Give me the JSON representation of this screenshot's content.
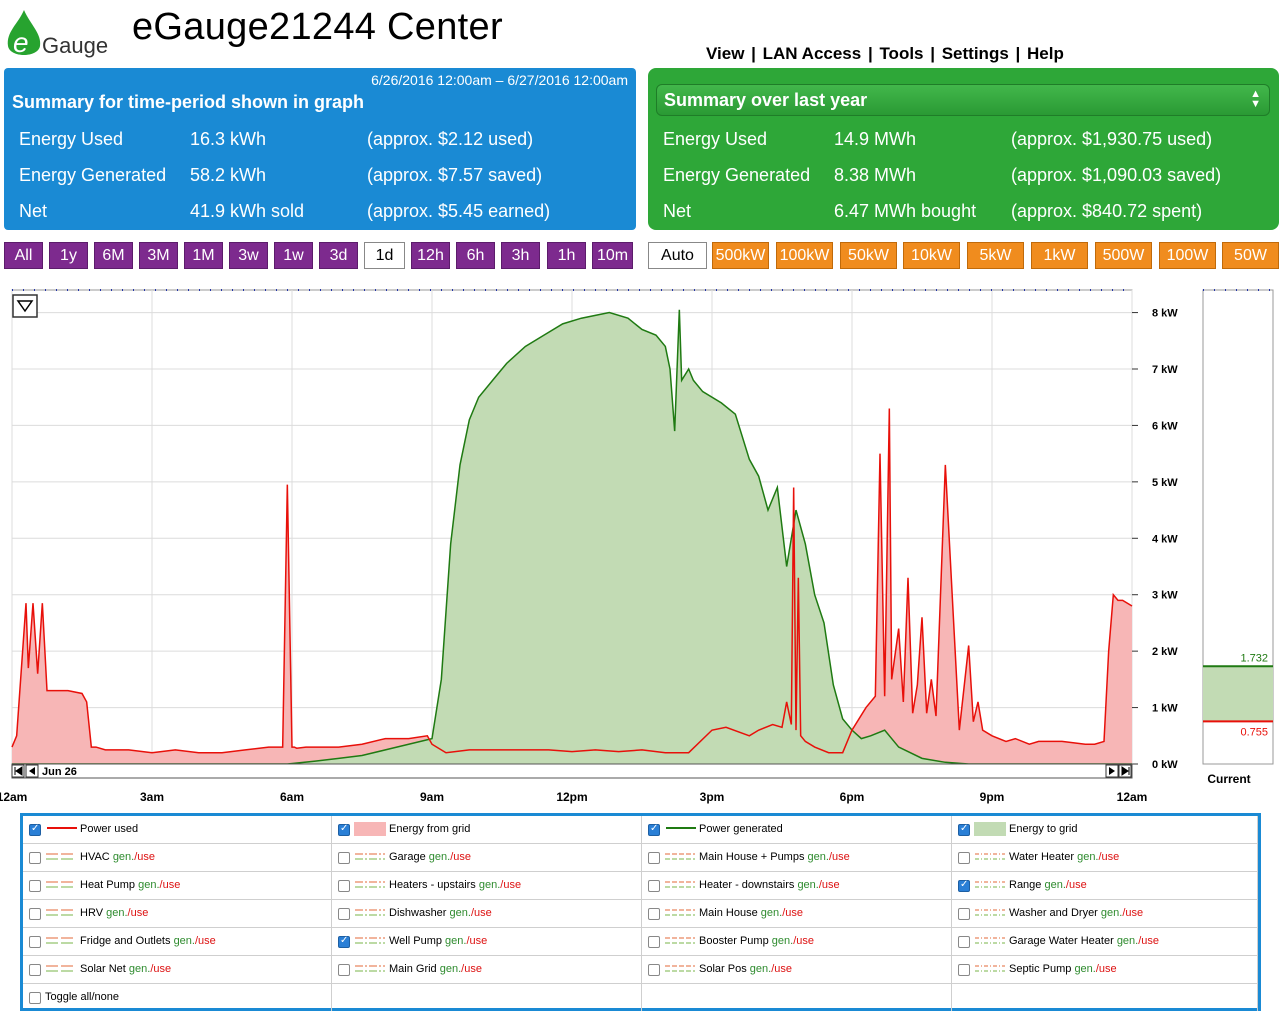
{
  "header": {
    "logo_text": "Gauge",
    "title": "eGauge21244 Center",
    "nav": [
      "View",
      "LAN Access",
      "Tools",
      "Settings",
      "Help"
    ]
  },
  "summary_period": {
    "range": "6/26/2016 12:00am – 6/27/2016 12:00am",
    "title": "Summary for time-period shown in graph",
    "rows": [
      {
        "label": "Energy Used",
        "value": "16.3 kWh",
        "note": "(approx. $2.12 used)"
      },
      {
        "label": "Energy Generated",
        "value": "58.2 kWh",
        "note": "(approx. $7.57 saved)"
      },
      {
        "label": "Net",
        "value": "41.9 kWh sold",
        "note": "(approx. $5.45 earned)"
      }
    ]
  },
  "summary_year": {
    "selected": "Summary over last year",
    "rows": [
      {
        "label": "Energy Used",
        "value": "14.9 MWh",
        "note": "(approx. $1,930.75 used)"
      },
      {
        "label": "Energy Generated",
        "value": "8.38 MWh",
        "note": "(approx. $1,090.03 saved)"
      },
      {
        "label": "Net",
        "value": "6.47 MWh bought",
        "note": "(approx. $840.72 spent)"
      }
    ]
  },
  "time_buttons": [
    "All",
    "1y",
    "6M",
    "3M",
    "1M",
    "3w",
    "1w",
    "3d",
    "1d",
    "12h",
    "6h",
    "3h",
    "1h",
    "10m"
  ],
  "time_selected": "1d",
  "scale_buttons": [
    "Auto",
    "500kW",
    "100kW",
    "50kW",
    "10kW",
    "5kW",
    "1kW",
    "500W",
    "100W",
    "50W"
  ],
  "scale_selected": "Auto",
  "chart_data": {
    "type": "area",
    "x_ticks": [
      "12am",
      "3am",
      "6am",
      "9am",
      "12pm",
      "3pm",
      "6pm",
      "9pm",
      "12am"
    ],
    "y_ticks": [
      "0 kW",
      "1 kW",
      "2 kW",
      "3 kW",
      "4 kW",
      "5 kW",
      "6 kW",
      "7 kW",
      "8 kW"
    ],
    "ylim": [
      0,
      8.4
    ],
    "xlim": [
      0,
      24
    ],
    "date_label": "Jun 26",
    "current_label": "Current",
    "current_generated": "1.732",
    "current_used": "0.755",
    "colors": {
      "used": "#e8100a",
      "used_fill": "#f7b6b6",
      "generated": "#1f7a12",
      "generated_fill": "#c2dbb4",
      "grid": "#2233aa"
    },
    "series": [
      {
        "name": "Power used",
        "x": [
          0,
          0.1,
          0.3,
          0.35,
          0.45,
          0.55,
          0.65,
          0.75,
          0.9,
          1.2,
          1.5,
          1.6,
          1.7,
          1.8,
          2,
          2.5,
          3,
          3.5,
          4,
          4.5,
          5,
          5.5,
          5.8,
          5.9,
          6,
          6.05,
          6.1,
          6.3,
          7,
          7.5,
          8,
          8.5,
          8.9,
          9,
          9.3,
          9.8,
          10.5,
          11,
          11.5,
          12,
          12.5,
          13,
          13.5,
          14,
          14.5,
          15,
          15.3,
          15.8,
          16,
          16.3,
          16.5,
          16.6,
          16.7,
          16.75,
          16.8,
          16.85,
          16.9,
          17,
          17.2,
          17.5,
          17.8,
          18,
          18.3,
          18.5,
          18.6,
          18.7,
          18.8,
          18.85,
          19,
          19.1,
          19.2,
          19.3,
          19.4,
          19.5,
          19.6,
          19.7,
          19.8,
          20,
          20.3,
          20.5,
          20.6,
          20.7,
          20.8,
          21,
          21.3,
          21.5,
          21.8,
          22,
          22.5,
          23,
          23.2,
          23.4,
          23.5,
          23.6,
          23.7,
          23.8,
          24
        ],
        "y": [
          0.3,
          0.5,
          2.85,
          1.7,
          2.85,
          1.6,
          2.85,
          1.3,
          1.3,
          1.3,
          1.25,
          1.1,
          0.3,
          0.3,
          0.25,
          0.25,
          0.2,
          0.25,
          0.2,
          0.2,
          0.25,
          0.3,
          0.3,
          4.95,
          0.3,
          0.3,
          0.28,
          0.3,
          0.3,
          0.35,
          0.45,
          0.45,
          0.5,
          0.35,
          0.2,
          0.25,
          0.25,
          0.25,
          0.25,
          0.22,
          0.25,
          0.22,
          0.25,
          0.2,
          0.2,
          0.6,
          0.65,
          0.5,
          0.6,
          0.7,
          0.65,
          1.1,
          0.7,
          4.9,
          0.6,
          3.3,
          0.5,
          0.4,
          0.3,
          0.2,
          0.2,
          0.6,
          1.0,
          1.2,
          5.5,
          1.2,
          6.3,
          1.5,
          2.4,
          1.1,
          3.3,
          0.9,
          1.4,
          2.6,
          0.9,
          1.5,
          0.85,
          5.3,
          0.6,
          2.1,
          0.75,
          1.1,
          0.6,
          0.5,
          0.4,
          0.45,
          0.35,
          0.4,
          0.4,
          0.35,
          0.35,
          0.4,
          2.0,
          3.0,
          2.9,
          2.9,
          2.8
        ]
      },
      {
        "name": "Power generated",
        "x": [
          0,
          5.9,
          6.5,
          7,
          7.5,
          8,
          8.5,
          9,
          9.2,
          9.4,
          9.6,
          9.8,
          10,
          10.3,
          10.6,
          11,
          11.4,
          11.8,
          12.2,
          12.5,
          12.8,
          13.2,
          13.5,
          13.8,
          14,
          14.1,
          14.2,
          14.3,
          14.35,
          14.5,
          14.6,
          14.8,
          15.2,
          15.5,
          15.8,
          16,
          16.2,
          16.4,
          16.6,
          16.8,
          17,
          17.2,
          17.4,
          17.6,
          17.8,
          18,
          18.2,
          18.4,
          18.7,
          19,
          19.5,
          20,
          20.5,
          21,
          22,
          23,
          24
        ],
        "y": [
          0,
          0,
          0.05,
          0.1,
          0.15,
          0.25,
          0.35,
          0.45,
          1.5,
          3.9,
          5.3,
          6.1,
          6.5,
          6.8,
          7.1,
          7.4,
          7.6,
          7.8,
          7.9,
          7.95,
          8.0,
          7.9,
          7.7,
          7.6,
          7.4,
          7.0,
          5.9,
          8.05,
          6.8,
          7.0,
          6.8,
          6.6,
          6.4,
          6.2,
          5.4,
          5.1,
          4.5,
          4.9,
          3.5,
          4.5,
          3.9,
          3.0,
          2.5,
          1.4,
          0.8,
          0.6,
          0.45,
          0.5,
          0.6,
          0.3,
          0.1,
          0.03,
          0.0,
          0.0,
          0.0,
          0.0,
          0.0
        ]
      }
    ]
  },
  "legend": {
    "rows": [
      [
        {
          "label": "Power used",
          "checked": true,
          "swatch": "line-red"
        },
        {
          "label": "Energy from grid",
          "checked": true,
          "swatch": "fill-red"
        },
        {
          "label": "Power generated",
          "checked": true,
          "swatch": "line-green"
        },
        {
          "label": "Energy to grid",
          "checked": true,
          "swatch": "fill-green"
        }
      ],
      [
        {
          "label": "HVAC",
          "checked": false,
          "swatch": "dash-a"
        },
        {
          "label": "Garage",
          "checked": false,
          "swatch": "dash-b"
        },
        {
          "label": "Main House + Pumps",
          "checked": false,
          "swatch": "dash-c"
        },
        {
          "label": "Water Heater",
          "checked": false,
          "swatch": "dash-d"
        }
      ],
      [
        {
          "label": "Heat Pump",
          "checked": false,
          "swatch": "dash-a"
        },
        {
          "label": "Heaters - upstairs",
          "checked": false,
          "swatch": "dash-b"
        },
        {
          "label": "Heater - downstairs",
          "checked": false,
          "swatch": "dash-c"
        },
        {
          "label": "Range",
          "checked": true,
          "swatch": "dash-d"
        }
      ],
      [
        {
          "label": "HRV",
          "checked": false,
          "swatch": "dash-a"
        },
        {
          "label": "Dishwasher",
          "checked": false,
          "swatch": "dash-b"
        },
        {
          "label": "Main House",
          "checked": false,
          "swatch": "dash-c"
        },
        {
          "label": "Washer and Dryer",
          "checked": false,
          "swatch": "dash-d"
        }
      ],
      [
        {
          "label": "Fridge and Outlets",
          "checked": false,
          "swatch": "dash-a"
        },
        {
          "label": "Well Pump",
          "checked": true,
          "swatch": "dash-b"
        },
        {
          "label": "Booster Pump",
          "checked": false,
          "swatch": "dash-c"
        },
        {
          "label": "Garage Water Heater",
          "checked": false,
          "swatch": "dash-d"
        }
      ],
      [
        {
          "label": "Solar Net",
          "checked": false,
          "swatch": "dash-a"
        },
        {
          "label": "Main Grid",
          "checked": false,
          "swatch": "dash-b"
        },
        {
          "label": "Solar Pos",
          "checked": false,
          "swatch": "dash-c"
        },
        {
          "label": "Septic Pump",
          "checked": false,
          "swatch": "dash-d"
        }
      ]
    ],
    "gen_label": "gen.",
    "use_label": "/use",
    "toggle_label": "Toggle all/none"
  }
}
